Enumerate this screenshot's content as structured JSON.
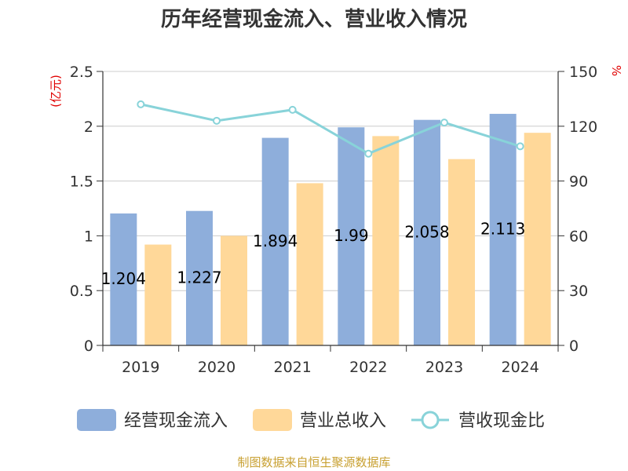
{
  "chart_data": {
    "type": "bar",
    "title": "历年经营现金流入、营业收入情况",
    "categories": [
      "2019",
      "2020",
      "2021",
      "2022",
      "2023",
      "2024"
    ],
    "series": [
      {
        "name": "经营现金流入",
        "type": "bar",
        "axis": "left",
        "color": "#8eaedb",
        "values": [
          1.204,
          1.227,
          1.894,
          1.99,
          2.058,
          2.113
        ]
      },
      {
        "name": "营业总收入",
        "type": "bar",
        "axis": "left",
        "color": "#ffd899",
        "values": [
          0.92,
          1.0,
          1.48,
          1.91,
          1.7,
          1.94
        ]
      },
      {
        "name": "营收现金比",
        "type": "line",
        "axis": "right",
        "color": "#88d3d9",
        "values": [
          132,
          123,
          129,
          105,
          122,
          109
        ]
      }
    ],
    "data_labels": [
      "1.204",
      "1.227",
      "1.894",
      "1.99",
      "2.058",
      "2.113"
    ],
    "y_left": {
      "unit": "(亿元)",
      "ylim": [
        0,
        2.5
      ],
      "ticks": [
        "0",
        "0.5",
        "1",
        "1.5",
        "2",
        "2.5"
      ]
    },
    "y_right": {
      "unit": "%",
      "ylim": [
        0,
        150
      ],
      "ticks": [
        "0",
        "30",
        "60",
        "90",
        "120",
        "150"
      ]
    },
    "grid": true,
    "legend_position": "bottom",
    "source": "制图数据来自恒生聚源数据库"
  }
}
